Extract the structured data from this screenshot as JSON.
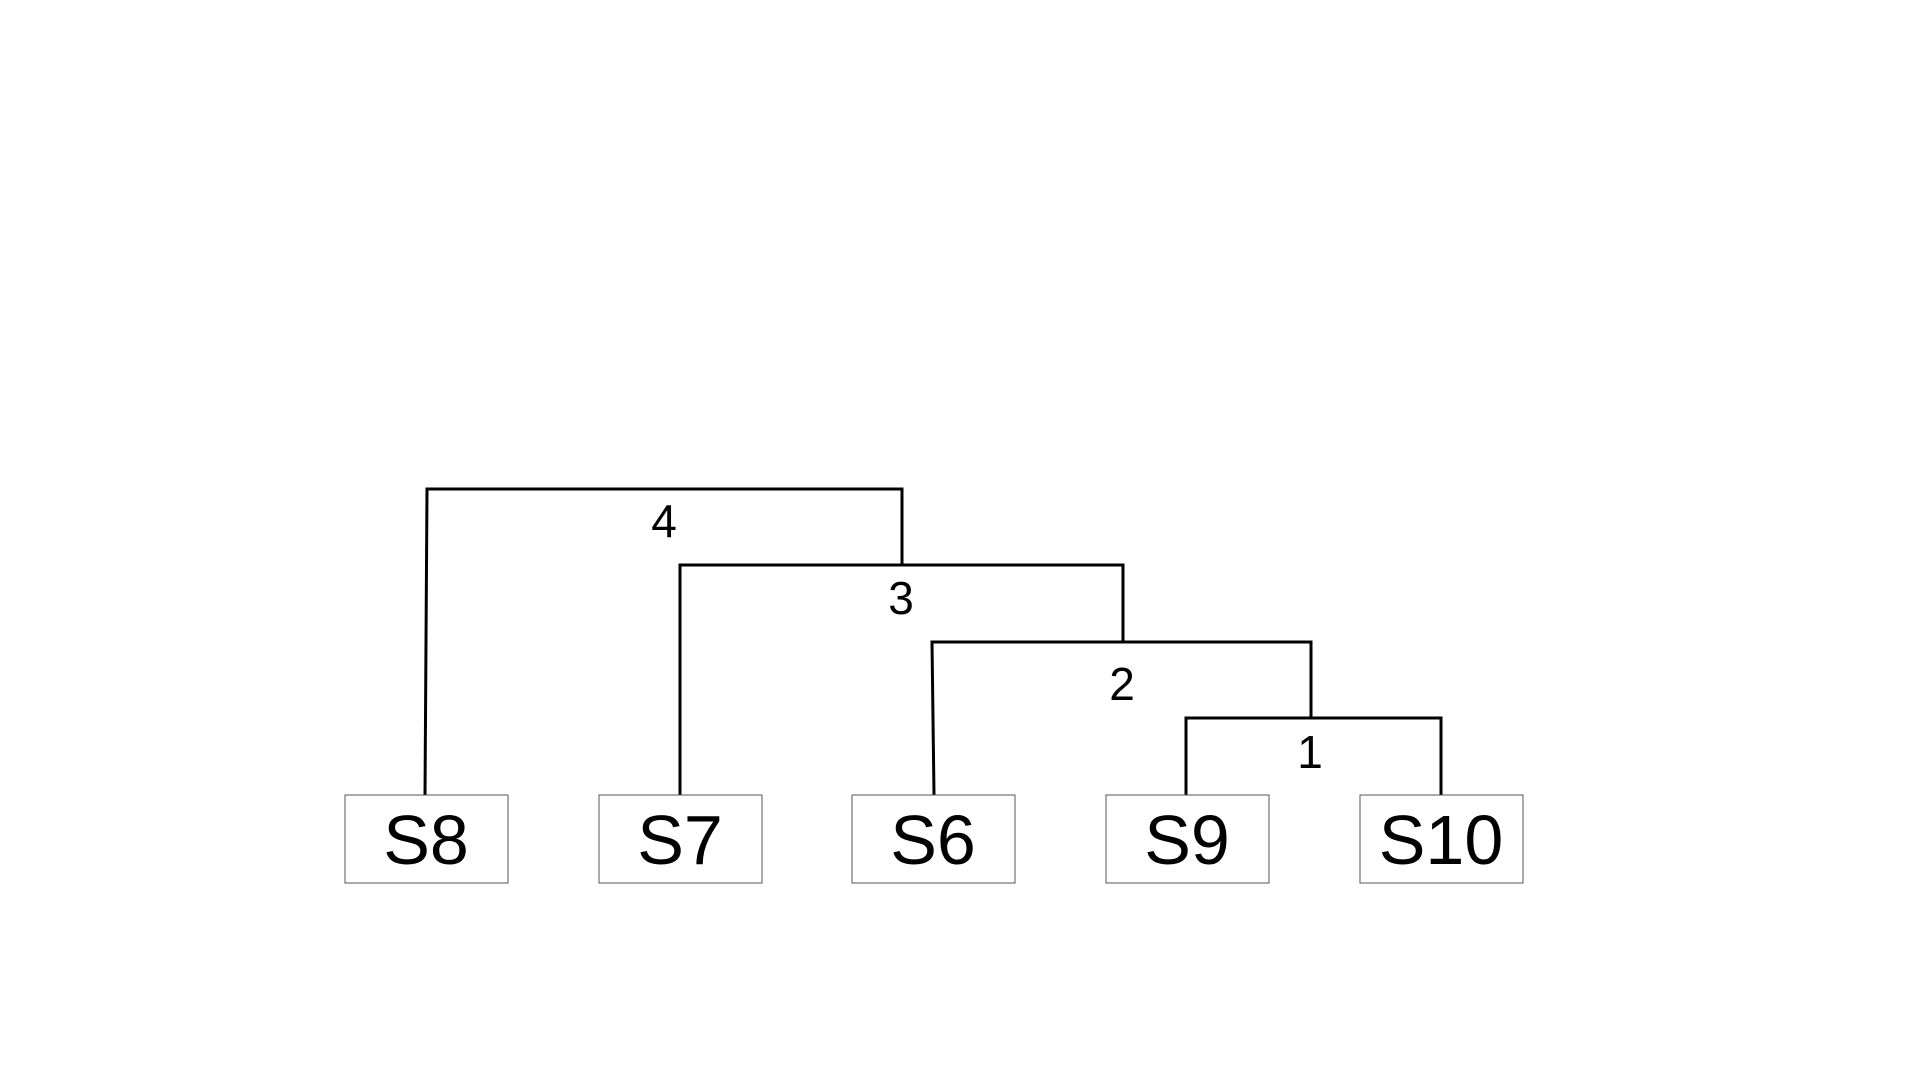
{
  "diagram": {
    "type": "dendrogram",
    "leaves": [
      {
        "id": "S8",
        "label": "S8"
      },
      {
        "id": "S7",
        "label": "S7"
      },
      {
        "id": "S6",
        "label": "S6"
      },
      {
        "id": "S9",
        "label": "S9"
      },
      {
        "id": "S10",
        "label": "S10"
      }
    ],
    "merges": [
      {
        "label": "1",
        "left": "S9",
        "right": "S10"
      },
      {
        "label": "2",
        "left": "S6",
        "right": "M1"
      },
      {
        "label": "3",
        "left": "S7",
        "right": "M2"
      },
      {
        "label": "4",
        "left": "S8",
        "right": "M3"
      }
    ],
    "line_color": "#000000",
    "box_border_color": "#555555"
  }
}
